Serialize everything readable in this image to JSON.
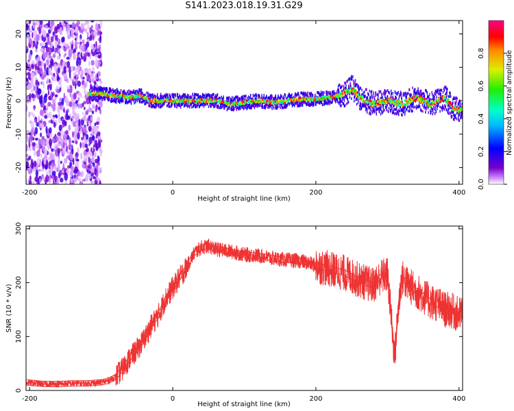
{
  "title": "S141.2023.018.19.31.G29",
  "chart_data": [
    {
      "type": "heatmap",
      "xlabel": "Height of straight line (km)",
      "ylabel": "Frequency (Hz)",
      "xlim": [
        -205,
        405
      ],
      "ylim": [
        -25,
        24
      ],
      "xticks": [
        -200,
        0,
        200,
        400
      ],
      "yticks": [
        -20,
        -10,
        0,
        10,
        20
      ],
      "colorbar": {
        "label": "Normalized spectral amplitude",
        "range": [
          0,
          1
        ],
        "ticks": [
          0.0,
          0.2,
          0.4,
          0.6,
          0.8
        ],
        "colormap": "rainbow (violet-blue-cyan-green-yellow-red-magenta)"
      },
      "signal_ridge": {
        "x": [
          -115,
          -100,
          -80,
          -60,
          -45,
          -30,
          -10,
          0,
          20,
          40,
          60,
          80,
          100,
          120,
          140,
          160,
          180,
          200,
          220,
          240,
          250,
          260,
          280,
          300,
          320,
          340,
          360,
          380,
          390,
          400,
          405
        ],
        "frequency": [
          2,
          2,
          1.5,
          1,
          1.5,
          0,
          0,
          0,
          0,
          0,
          0,
          -1,
          -0.5,
          0,
          -0.5,
          0,
          0.5,
          0.5,
          1,
          2,
          4,
          1,
          -1,
          0,
          -1,
          1,
          -1,
          1,
          -2,
          -3,
          -2
        ]
      },
      "noise_region_km": [
        -205,
        -100
      ]
    },
    {
      "type": "line",
      "xlabel": "Height of straight line (km)",
      "ylabel": "SNR (10 * v/v)",
      "xlim": [
        -205,
        405
      ],
      "ylim": [
        0,
        305
      ],
      "xticks": [
        -200,
        0,
        200,
        400
      ],
      "yticks": [
        0,
        100,
        200,
        300
      ],
      "color": "#ee3333",
      "x": [
        -205,
        -180,
        -160,
        -140,
        -120,
        -100,
        -90,
        -80,
        -70,
        -60,
        -50,
        -40,
        -30,
        -20,
        -10,
        0,
        10,
        20,
        30,
        40,
        50,
        60,
        80,
        100,
        120,
        140,
        160,
        180,
        200,
        220,
        240,
        260,
        270,
        280,
        290,
        300,
        305,
        310,
        315,
        320,
        330,
        340,
        350,
        360,
        370,
        380,
        390,
        400,
        405
      ],
      "y": [
        15,
        12,
        12,
        13,
        13,
        15,
        18,
        25,
        40,
        60,
        75,
        95,
        120,
        140,
        170,
        190,
        210,
        230,
        255,
        265,
        268,
        262,
        258,
        252,
        250,
        245,
        242,
        240,
        232,
        225,
        218,
        205,
        200,
        195,
        210,
        215,
        140,
        60,
        150,
        210,
        195,
        185,
        175,
        165,
        160,
        150,
        148,
        140,
        145
      ]
    }
  ]
}
